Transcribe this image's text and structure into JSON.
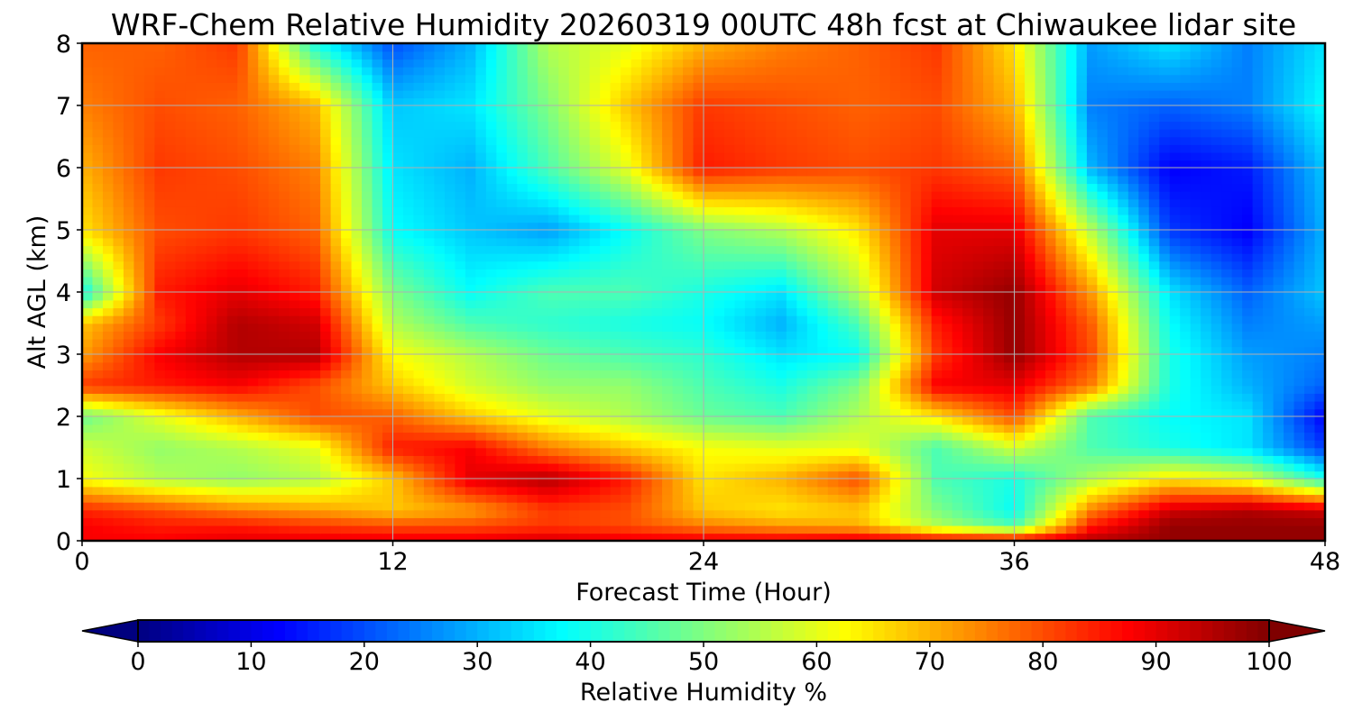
{
  "chart_data": {
    "type": "heatmap",
    "title": "WRF-Chem Relative Humidity 20260319 00UTC 48h fcst at Chiwaukee lidar site",
    "xlabel": "Forecast Time (Hour)",
    "ylabel": "Alt AGL (km)",
    "x_ticks": [
      0,
      12,
      24,
      36,
      48
    ],
    "y_ticks": [
      0,
      1,
      2,
      3,
      4,
      5,
      6,
      7,
      8
    ],
    "xlim": [
      0,
      48
    ],
    "ylim": [
      0,
      8
    ],
    "grid": true,
    "x": [
      0,
      3,
      6,
      9,
      12,
      15,
      18,
      21,
      24,
      27,
      30,
      33,
      36,
      39,
      42,
      45,
      48
    ],
    "y": [
      0,
      0.25,
      0.5,
      1,
      1.5,
      2,
      2.5,
      3,
      3.5,
      4,
      5,
      6,
      7,
      8
    ],
    "z": [
      [
        88,
        88,
        90,
        90,
        90,
        90,
        92,
        90,
        90,
        90,
        92,
        90,
        90,
        95,
        98,
        98,
        98
      ],
      [
        88,
        85,
        85,
        82,
        80,
        80,
        82,
        80,
        75,
        72,
        70,
        55,
        45,
        85,
        98,
        98,
        98
      ],
      [
        84,
        80,
        75,
        72,
        68,
        72,
        82,
        80,
        68,
        65,
        68,
        50,
        38,
        75,
        92,
        95,
        92
      ],
      [
        62,
        55,
        52,
        55,
        68,
        90,
        95,
        85,
        65,
        70,
        80,
        45,
        40,
        55,
        65,
        60,
        40
      ],
      [
        58,
        52,
        55,
        60,
        85,
        88,
        75,
        68,
        62,
        60,
        60,
        45,
        58,
        45,
        40,
        35,
        18
      ],
      [
        48,
        60,
        70,
        80,
        78,
        68,
        60,
        55,
        48,
        45,
        55,
        65,
        80,
        45,
        38,
        35,
        12
      ],
      [
        82,
        85,
        88,
        80,
        68,
        58,
        52,
        52,
        45,
        40,
        50,
        88,
        90,
        75,
        40,
        30,
        22
      ],
      [
        72,
        88,
        95,
        95,
        62,
        55,
        48,
        45,
        42,
        35,
        38,
        82,
        98,
        80,
        40,
        28,
        25
      ],
      [
        68,
        82,
        95,
        92,
        55,
        45,
        42,
        40,
        38,
        30,
        45,
        85,
        98,
        78,
        38,
        25,
        28
      ],
      [
        38,
        85,
        90,
        85,
        50,
        38,
        45,
        45,
        40,
        35,
        55,
        92,
        98,
        72,
        35,
        22,
        32
      ],
      [
        65,
        80,
        82,
        78,
        38,
        32,
        28,
        38,
        50,
        55,
        65,
        90,
        90,
        55,
        18,
        12,
        30
      ],
      [
        70,
        82,
        80,
        75,
        35,
        30,
        45,
        60,
        85,
        82,
        80,
        82,
        78,
        30,
        12,
        15,
        32
      ],
      [
        75,
        80,
        78,
        70,
        32,
        35,
        50,
        68,
        82,
        80,
        78,
        80,
        70,
        25,
        22,
        25,
        38
      ],
      [
        78,
        78,
        82,
        40,
        20,
        30,
        55,
        60,
        70,
        75,
        78,
        82,
        65,
        28,
        35,
        25,
        35
      ]
    ],
    "colorbar": {
      "label": "Relative Humidity %",
      "ticks": [
        0,
        10,
        20,
        30,
        40,
        50,
        60,
        70,
        80,
        90,
        100
      ],
      "range": [
        0,
        100
      ],
      "extend": "both",
      "colormap": "jet"
    }
  }
}
